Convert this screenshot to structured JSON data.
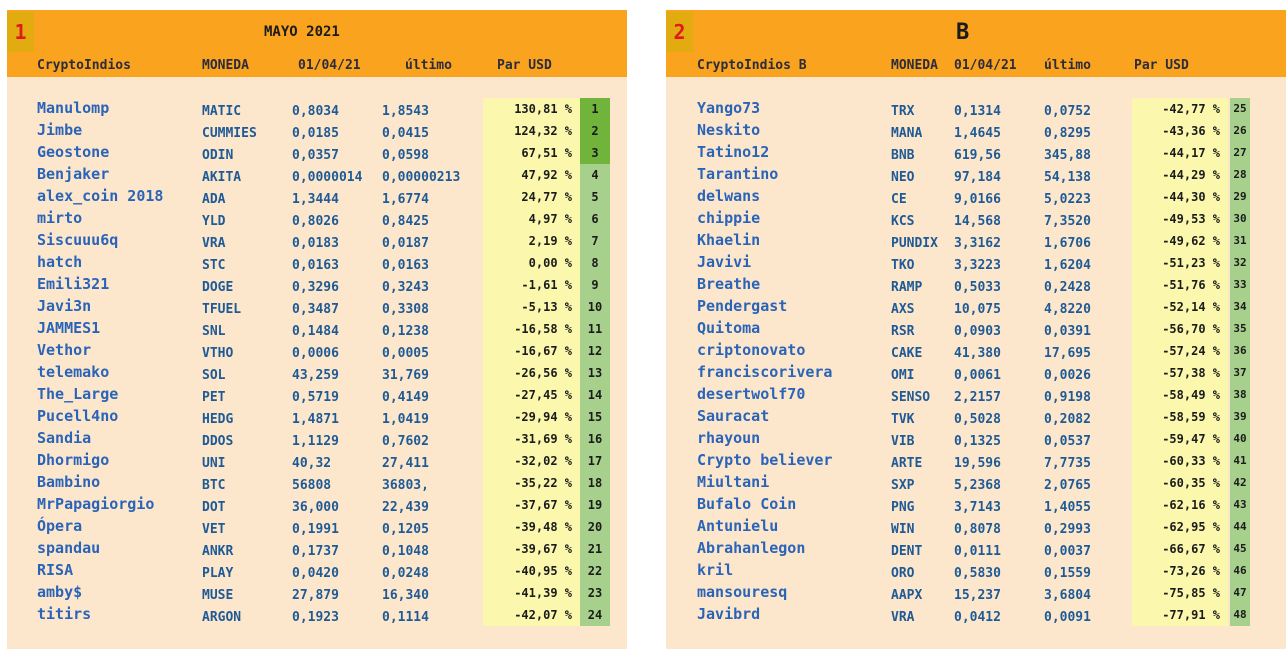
{
  "colors": {
    "header_bg": "#f9a31e",
    "panel_bg": "#fde7cc",
    "pct_bg": "#fbf8ae",
    "rank_bg": "#a8d08d",
    "rank_top_bg": "#70b43c",
    "panel_num": "#e0191d",
    "name_text": "#2a64b8"
  },
  "panels": [
    {
      "number": "1",
      "title": "MAYO 2021",
      "headers": {
        "group": "CryptoIndios",
        "coin": "MONEDA",
        "date": "01/04/21",
        "last": "último",
        "par": "Par USD"
      },
      "rows": [
        {
          "name": "Manulomp",
          "coin": "MATIC",
          "v1": "0,8034",
          "v2": "1,8543",
          "pct": "130,81 %",
          "rank": "1",
          "top": true
        },
        {
          "name": "Jimbe",
          "coin": "CUMMIES",
          "v1": "0,0185",
          "v2": "0,0415",
          "pct": "124,32 %",
          "rank": "2",
          "top": true
        },
        {
          "name": "Geostone",
          "coin": "ODIN",
          "v1": "0,0357",
          "v2": "0,0598",
          "pct": "67,51 %",
          "rank": "3",
          "top": true
        },
        {
          "name": "Benjaker",
          "coin": "AKITA",
          "v1": "0,0000014",
          "v2": "0,00000213",
          "pct": "47,92 %",
          "rank": "4",
          "top": false
        },
        {
          "name": "alex_coin 2018",
          "coin": "ADA",
          "v1": "1,3444",
          "v2": "1,6774",
          "pct": "24,77 %",
          "rank": "5",
          "top": false
        },
        {
          "name": "mirto",
          "coin": "YLD",
          "v1": "0,8026",
          "v2": "0,8425",
          "pct": "4,97 %",
          "rank": "6",
          "top": false
        },
        {
          "name": "Siscuuu6q",
          "coin": "VRA",
          "v1": "0,0183",
          "v2": "0,0187",
          "pct": "2,19 %",
          "rank": "7",
          "top": false
        },
        {
          "name": "hatch",
          "coin": "STC",
          "v1": "0,0163",
          "v2": "0,0163",
          "pct": "0,00 %",
          "rank": "8",
          "top": false
        },
        {
          "name": "Emili321",
          "coin": "DOGE",
          "v1": "0,3296",
          "v2": "0,3243",
          "pct": "-1,61 %",
          "rank": "9",
          "top": false
        },
        {
          "name": "Javi3n",
          "coin": "TFUEL",
          "v1": "0,3487",
          "v2": "0,3308",
          "pct": "-5,13 %",
          "rank": "10",
          "top": false
        },
        {
          "name": "JAMMES1",
          "coin": "SNL",
          "v1": "0,1484",
          "v2": "0,1238",
          "pct": "-16,58 %",
          "rank": "11",
          "top": false
        },
        {
          "name": "Vethor",
          "coin": "VTHO",
          "v1": "0,0006",
          "v2": "0,0005",
          "pct": "-16,67 %",
          "rank": "12",
          "top": false
        },
        {
          "name": "telemako",
          "coin": "SOL",
          "v1": "43,259",
          "v2": "31,769",
          "pct": "-26,56 %",
          "rank": "13",
          "top": false
        },
        {
          "name": "The_Large",
          "coin": "PET",
          "v1": "0,5719",
          "v2": "0,4149",
          "pct": "-27,45 %",
          "rank": "14",
          "top": false
        },
        {
          "name": "Pucell4no",
          "coin": "HEDG",
          "v1": "1,4871",
          "v2": "1,0419",
          "pct": "-29,94 %",
          "rank": "15",
          "top": false
        },
        {
          "name": "Sandia",
          "coin": "DDOS",
          "v1": "1,1129",
          "v2": "0,7602",
          "pct": "-31,69 %",
          "rank": "16",
          "top": false
        },
        {
          "name": "Dhormigo",
          "coin": "UNI",
          "v1": "40,32",
          "v2": "27,411",
          "pct": "-32,02 %",
          "rank": "17",
          "top": false
        },
        {
          "name": "Bambino",
          "coin": "BTC",
          "v1": "56808",
          "v2": "36803,",
          "pct": "-35,22 %",
          "rank": "18",
          "top": false
        },
        {
          "name": "MrPapagiorgio",
          "coin": "DOT",
          "v1": "36,000",
          "v2": "22,439",
          "pct": "-37,67 %",
          "rank": "19",
          "top": false
        },
        {
          "name": "Ópera",
          "coin": "VET",
          "v1": "0,1991",
          "v2": "0,1205",
          "pct": "-39,48 %",
          "rank": "20",
          "top": false
        },
        {
          "name": "spandau",
          "coin": "ANKR",
          "v1": "0,1737",
          "v2": "0,1048",
          "pct": "-39,67 %",
          "rank": "21",
          "top": false
        },
        {
          "name": "RISA",
          "coin": "PLAY",
          "v1": "0,0420",
          "v2": "0,0248",
          "pct": "-40,95 %",
          "rank": "22",
          "top": false
        },
        {
          "name": "amby$",
          "coin": "MUSE",
          "v1": "27,879",
          "v2": "16,340",
          "pct": "-41,39 %",
          "rank": "23",
          "top": false
        },
        {
          "name": "titirs",
          "coin": "ARGON",
          "v1": "0,1923",
          "v2": "0,1114",
          "pct": "-42,07 %",
          "rank": "24",
          "top": false
        }
      ]
    },
    {
      "number": "2",
      "title": "B",
      "headers": {
        "group": "CryptoIndios B",
        "coin": "MONEDA",
        "date": "01/04/21",
        "last": "último",
        "par": "Par USD"
      },
      "rows": [
        {
          "name": "Yango73",
          "coin": "TRX",
          "v1": "0,1314",
          "v2": "0,0752",
          "pct": "-42,77 %",
          "rank": "25"
        },
        {
          "name": "Neskito",
          "coin": "MANA",
          "v1": "1,4645",
          "v2": "0,8295",
          "pct": "-43,36 %",
          "rank": "26"
        },
        {
          "name": "Tatino12",
          "coin": "BNB",
          "v1": "619,56",
          "v2": "345,88",
          "pct": "-44,17 %",
          "rank": "27"
        },
        {
          "name": "Tarantino",
          "coin": "NEO",
          "v1": "97,184",
          "v2": "54,138",
          "pct": "-44,29 %",
          "rank": "28"
        },
        {
          "name": "delwans",
          "coin": "CE",
          "v1": "9,0166",
          "v2": "5,0223",
          "pct": "-44,30 %",
          "rank": "29"
        },
        {
          "name": "chippie",
          "coin": "KCS",
          "v1": "14,568",
          "v2": "7,3520",
          "pct": "-49,53 %",
          "rank": "30"
        },
        {
          "name": "Khaelin",
          "coin": "PUNDIX",
          "v1": "3,3162",
          "v2": "1,6706",
          "pct": "-49,62 %",
          "rank": "31"
        },
        {
          "name": "Javivi",
          "coin": "TKO",
          "v1": "3,3223",
          "v2": "1,6204",
          "pct": "-51,23 %",
          "rank": "32"
        },
        {
          "name": "Breathe",
          "coin": "RAMP",
          "v1": "0,5033",
          "v2": "0,2428",
          "pct": "-51,76 %",
          "rank": "33"
        },
        {
          "name": "Pendergast",
          "coin": "AXS",
          "v1": "10,075",
          "v2": "4,8220",
          "pct": "-52,14 %",
          "rank": "34"
        },
        {
          "name": "Quitoma",
          "coin": "RSR",
          "v1": "0,0903",
          "v2": "0,0391",
          "pct": "-56,70 %",
          "rank": "35"
        },
        {
          "name": "criptonovato",
          "coin": "CAKE",
          "v1": "41,380",
          "v2": "17,695",
          "pct": "-57,24 %",
          "rank": "36"
        },
        {
          "name": "franciscorivera",
          "coin": "OMI",
          "v1": "0,0061",
          "v2": "0,0026",
          "pct": "-57,38 %",
          "rank": "37"
        },
        {
          "name": "desertwolf70",
          "coin": "SENSO",
          "v1": "2,2157",
          "v2": "0,9198",
          "pct": "-58,49 %",
          "rank": "38"
        },
        {
          "name": "Sauracat",
          "coin": "TVK",
          "v1": "0,5028",
          "v2": "0,2082",
          "pct": "-58,59 %",
          "rank": "39"
        },
        {
          "name": "rhayoun",
          "coin": "VIB",
          "v1": "0,1325",
          "v2": "0,0537",
          "pct": "-59,47 %",
          "rank": "40"
        },
        {
          "name": "Crypto believer",
          "coin": "ARTE",
          "v1": "19,596",
          "v2": "7,7735",
          "pct": "-60,33 %",
          "rank": "41"
        },
        {
          "name": "Miultani",
          "coin": "SXP",
          "v1": "5,2368",
          "v2": "2,0765",
          "pct": "-60,35 %",
          "rank": "42"
        },
        {
          "name": "Bufalo Coin",
          "coin": "PNG",
          "v1": "3,7143",
          "v2": "1,4055",
          "pct": "-62,16 %",
          "rank": "43"
        },
        {
          "name": "Antunielu",
          "coin": "WIN",
          "v1": "0,8078",
          "v2": "0,2993",
          "pct": "-62,95 %",
          "rank": "44"
        },
        {
          "name": "Abrahanlegon",
          "coin": "DENT",
          "v1": "0,0111",
          "v2": "0,0037",
          "pct": "-66,67 %",
          "rank": "45"
        },
        {
          "name": "kril",
          "coin": "ORO",
          "v1": "0,5830",
          "v2": "0,1559",
          "pct": "-73,26 %",
          "rank": "46"
        },
        {
          "name": "mansouresq",
          "coin": "AAPX",
          "v1": "15,237",
          "v2": "3,6804",
          "pct": "-75,85 %",
          "rank": "47"
        },
        {
          "name": "Javibrd",
          "coin": "VRA",
          "v1": "0,0412",
          "v2": "0,0091",
          "pct": "-77,91 %",
          "rank": "48"
        }
      ]
    }
  ]
}
